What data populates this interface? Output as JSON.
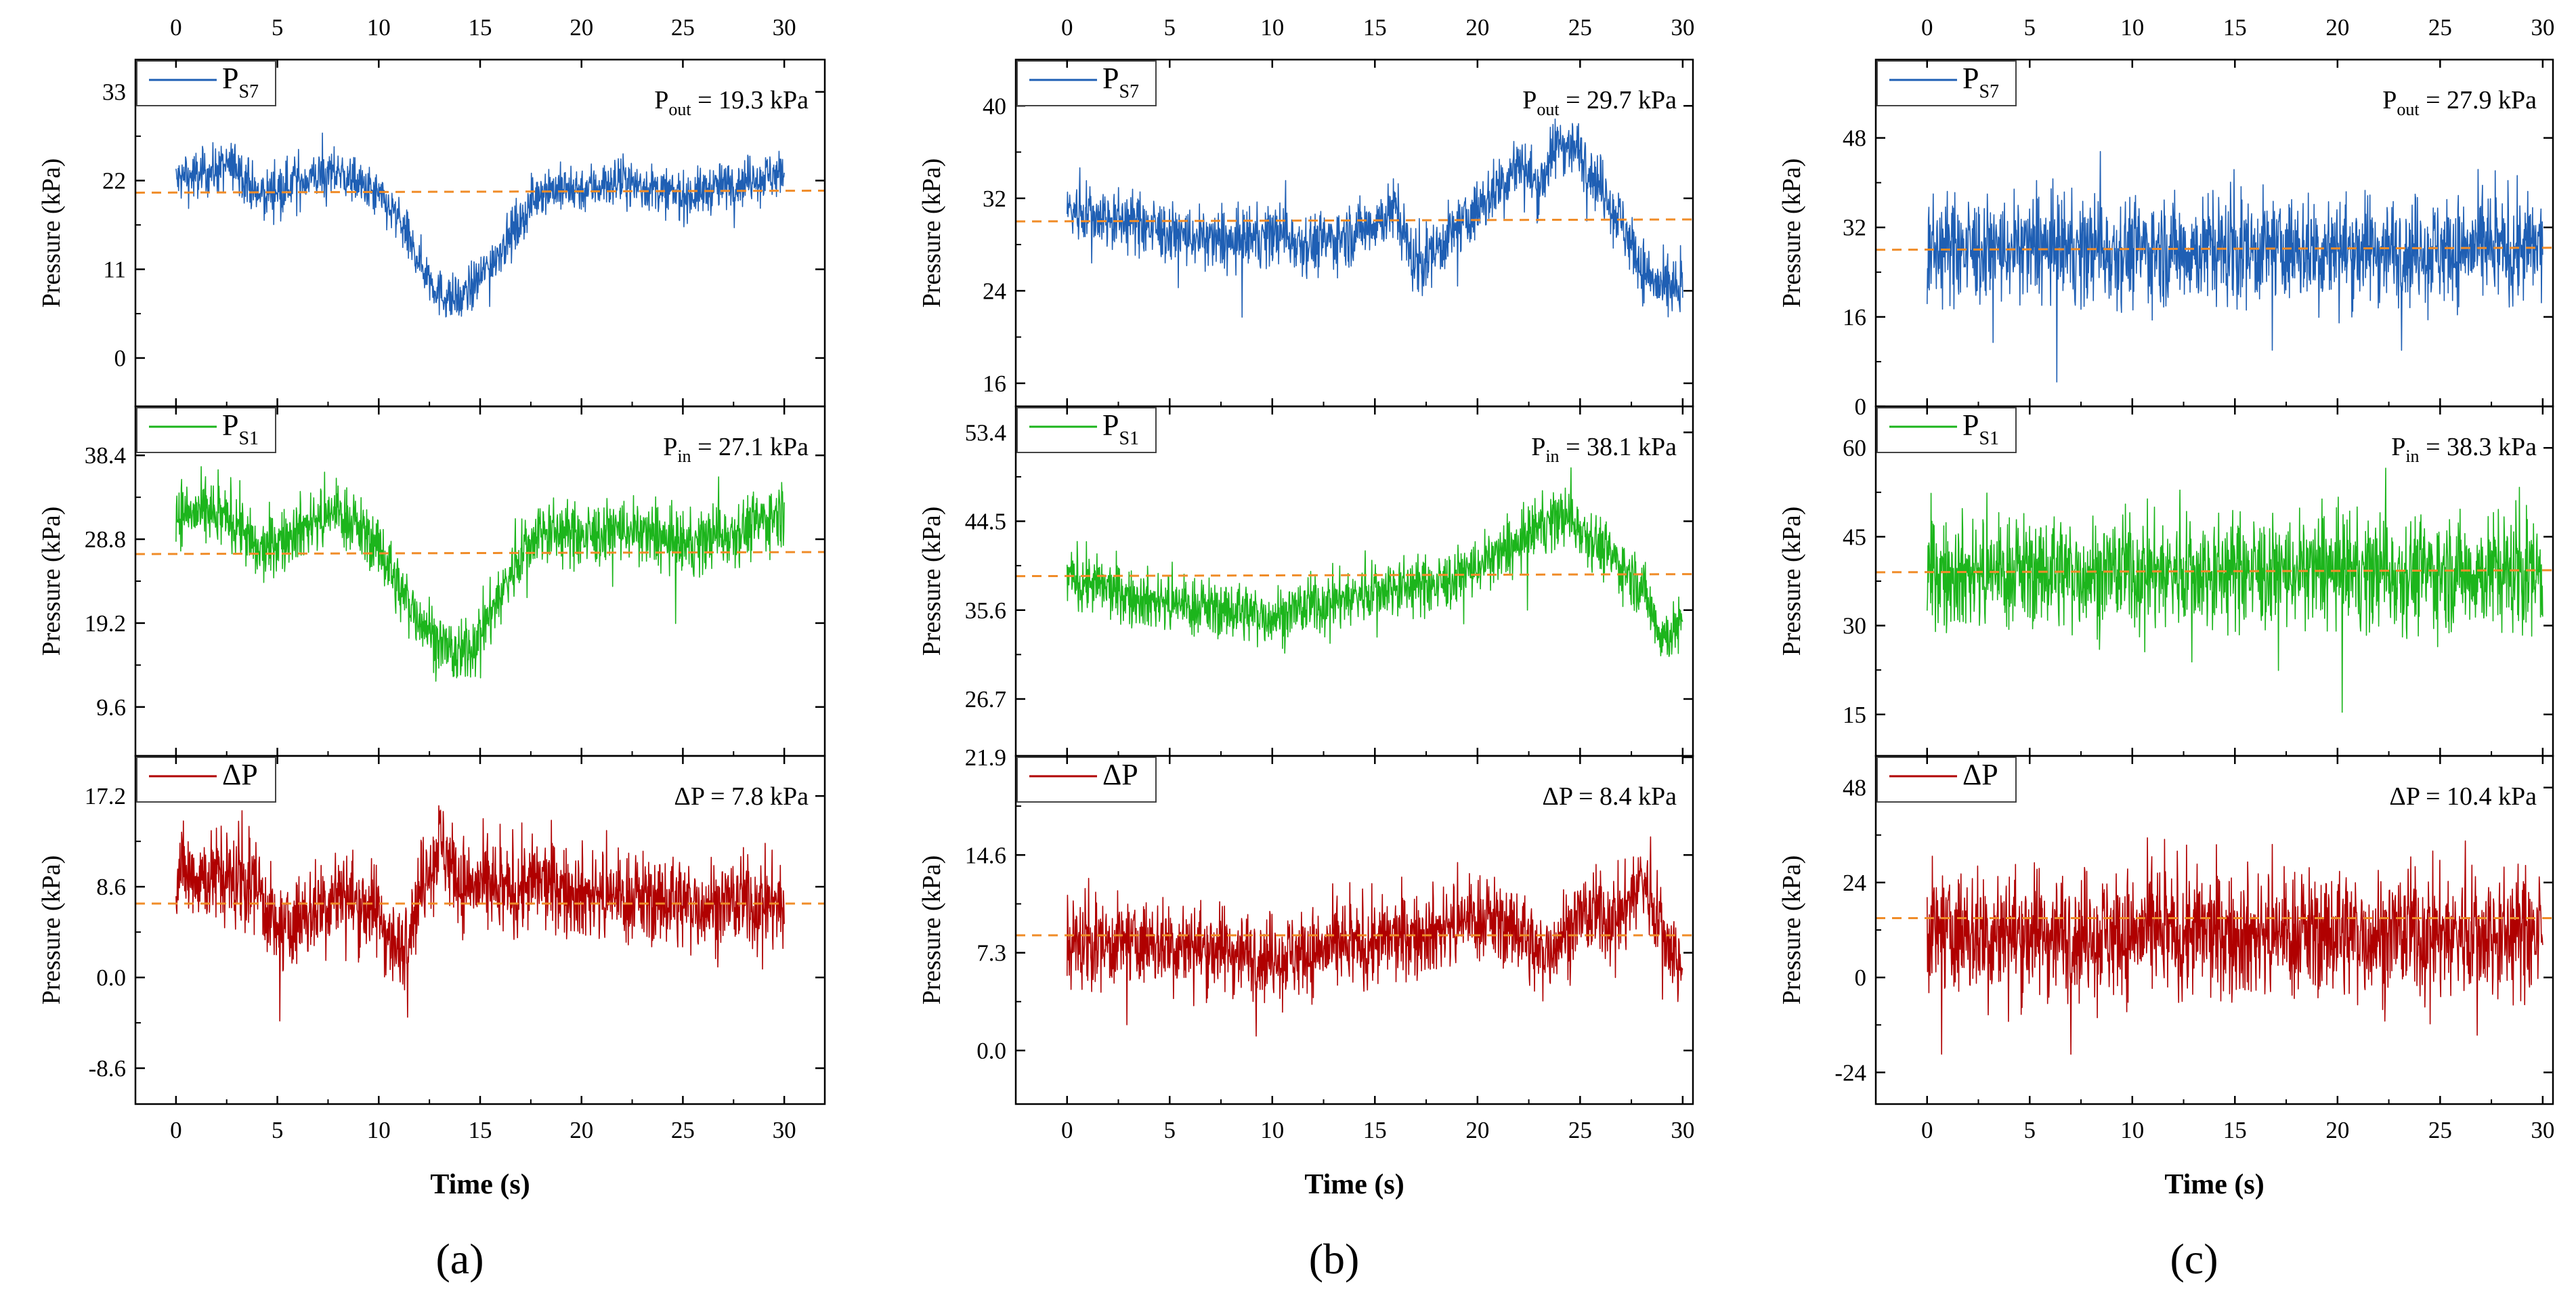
{
  "figure": {
    "x_axis_label": "Time (s)",
    "y_axis_label": "Pressure (kPa)",
    "x_ticks": [
      "0",
      "5",
      "10",
      "15",
      "20",
      "25",
      "30"
    ],
    "colors": {
      "ps7": "#1f5fb4",
      "ps1": "#1cb51c",
      "dp": "#b00000",
      "mean_line": "#f08c28"
    }
  },
  "chart_data": [
    {
      "type": "line",
      "panel_label": "(a)",
      "x_range": [
        -2,
        32
      ],
      "subplots": [
        {
          "series_name": "PS7",
          "label_main": "P",
          "label_sub": "S7",
          "annot_main": "P",
          "annot_sub": "out",
          "annot_value": " = 19.3 kPa",
          "ylim": [
            -6,
            37
          ],
          "tick_values": [
            0,
            11,
            22,
            33
          ],
          "tick_labels": [
            "0",
            "11",
            "22",
            "33"
          ],
          "mean": 20.5,
          "noise": 2.0,
          "trend_x": [
            0,
            3,
            4,
            6,
            8,
            10,
            11,
            12,
            13,
            14,
            15,
            17,
            18,
            20,
            22,
            25,
            28,
            30
          ],
          "trend_y": [
            22,
            24,
            20,
            22,
            23,
            20,
            17,
            12,
            8,
            7,
            10,
            17,
            21,
            21,
            22,
            20,
            22,
            23
          ]
        },
        {
          "series_name": "PS1",
          "label_main": "P",
          "label_sub": "S1",
          "annot_main": "P",
          "annot_sub": "in",
          "annot_value": " = 27.1 kPa",
          "ylim": [
            4,
            44
          ],
          "tick_values": [
            9.6,
            19.2,
            28.8,
            38.4
          ],
          "tick_labels": [
            "9.6",
            "19.2",
            "28.8",
            "38.4"
          ],
          "mean": 27.1,
          "noise": 2.5,
          "trend_x": [
            0,
            3,
            4,
            6,
            8,
            10,
            11,
            12,
            13,
            14,
            15,
            17,
            18,
            20,
            22,
            25,
            28,
            30
          ],
          "trend_y": [
            32,
            31,
            27,
            30,
            32,
            28,
            23,
            20,
            17,
            15,
            18,
            27,
            30,
            29,
            30,
            28,
            30,
            32
          ]
        },
        {
          "series_name": "ΔP",
          "label_main": "ΔP",
          "label_sub": "",
          "annot_main": "ΔP",
          "annot_sub": "",
          "annot_value": " = 7.8 kPa",
          "ylim": [
            -12,
            21
          ],
          "tick_values": [
            -8.6,
            0.0,
            8.6,
            17.2
          ],
          "tick_labels": [
            "-8.6",
            "0.0",
            "8.6",
            "17.2"
          ],
          "mean": 7.0,
          "noise": 3.0,
          "trend_x": [
            0,
            4,
            5,
            8,
            10,
            11,
            12,
            13,
            14,
            16,
            18,
            20,
            25,
            30
          ],
          "trend_y": [
            10,
            9,
            4,
            8,
            6,
            2,
            8,
            13,
            9,
            8,
            9,
            8,
            7,
            7
          ]
        }
      ]
    },
    {
      "type": "line",
      "panel_label": "(b)",
      "x_range": [
        -2.5,
        30.5
      ],
      "subplots": [
        {
          "series_name": "PS7",
          "label_main": "P",
          "label_sub": "S7",
          "annot_main": "P",
          "annot_sub": "out",
          "annot_value": " = 29.7 kPa",
          "ylim": [
            14,
            44
          ],
          "tick_values": [
            16,
            24,
            32,
            40
          ],
          "tick_labels": [
            "16",
            "24",
            "32",
            "40"
          ],
          "mean": 30.0,
          "noise": 1.8,
          "trend_x": [
            0,
            3,
            5,
            8,
            10,
            12,
            14,
            16,
            17,
            20,
            22,
            23,
            24,
            25,
            27,
            28,
            29,
            30
          ],
          "trend_y": [
            31,
            30,
            29,
            28,
            29,
            28,
            29,
            31,
            26,
            31,
            35,
            33,
            37,
            36,
            30,
            26,
            24,
            24
          ]
        },
        {
          "series_name": "PS1",
          "label_main": "P",
          "label_sub": "S1",
          "annot_main": "P",
          "annot_sub": "in",
          "annot_value": " = 38.1 kPa",
          "ylim": [
            21,
            56
          ],
          "tick_values": [
            26.7,
            35.6,
            44.5,
            53.4
          ],
          "tick_labels": [
            "26.7",
            "35.6",
            "44.5",
            "53.4"
          ],
          "mean": 39.0,
          "noise": 2.0,
          "trend_x": [
            0,
            3,
            6,
            10,
            14,
            16,
            18,
            20,
            22,
            23,
            24,
            25,
            27,
            28,
            29,
            30
          ],
          "trend_y": [
            39,
            37,
            36,
            35,
            37,
            38,
            38,
            40,
            42,
            44,
            45,
            44,
            40,
            38,
            33,
            34
          ]
        },
        {
          "series_name": "ΔP",
          "label_main": "ΔP",
          "label_sub": "",
          "annot_main": "ΔP",
          "annot_sub": "",
          "annot_value": " = 8.4 kPa",
          "ylim": [
            -4,
            22
          ],
          "tick_values": [
            0.0,
            7.3,
            14.6,
            21.9
          ],
          "tick_labels": [
            "0.0",
            "7.3",
            "14.6",
            "21.9"
          ],
          "mean": 8.6,
          "noise": 2.2,
          "trend_x": [
            0,
            5,
            10,
            15,
            18,
            20,
            22,
            23,
            25,
            27,
            28,
            29,
            30
          ],
          "trend_y": [
            8,
            8,
            7,
            8,
            9,
            10,
            9,
            7,
            10,
            10,
            13,
            9,
            6
          ]
        }
      ]
    },
    {
      "type": "line",
      "panel_label": "(c)",
      "x_range": [
        -2.5,
        30.5
      ],
      "subplots": [
        {
          "series_name": "PS7",
          "label_main": "P",
          "label_sub": "S7",
          "annot_main": "P",
          "annot_sub": "out",
          "annot_value": " = 27.9 kPa",
          "ylim": [
            0,
            62
          ],
          "tick_values": [
            0,
            16,
            32,
            48
          ],
          "tick_labels": [
            "0",
            "16",
            "32",
            "48"
          ],
          "mean": 28.0,
          "noise": 6.5,
          "trend_x": [
            0,
            30
          ],
          "trend_y": [
            28,
            28
          ]
        },
        {
          "series_name": "PS1",
          "label_main": "P",
          "label_sub": "S1",
          "annot_main": "P",
          "annot_sub": "in",
          "annot_value": " = 38.3 kPa",
          "ylim": [
            8,
            67
          ],
          "tick_values": [
            15,
            30,
            45,
            60
          ],
          "tick_labels": [
            "15",
            "30",
            "45",
            "60"
          ],
          "mean": 39.0,
          "noise": 6.5,
          "trend_x": [
            0,
            30
          ],
          "trend_y": [
            39,
            39
          ]
        },
        {
          "series_name": "ΔP",
          "label_main": "ΔP",
          "label_sub": "",
          "annot_main": "ΔP",
          "annot_sub": "",
          "annot_value": " = 10.4 kPa",
          "ylim": [
            -32,
            56
          ],
          "tick_values": [
            -24,
            0,
            24,
            48
          ],
          "tick_labels": [
            "-24",
            "0",
            "24",
            "48"
          ],
          "mean": 15.0,
          "noise": 11.0,
          "trend_x": [
            0,
            30
          ],
          "trend_y": [
            11,
            11
          ]
        }
      ]
    }
  ]
}
